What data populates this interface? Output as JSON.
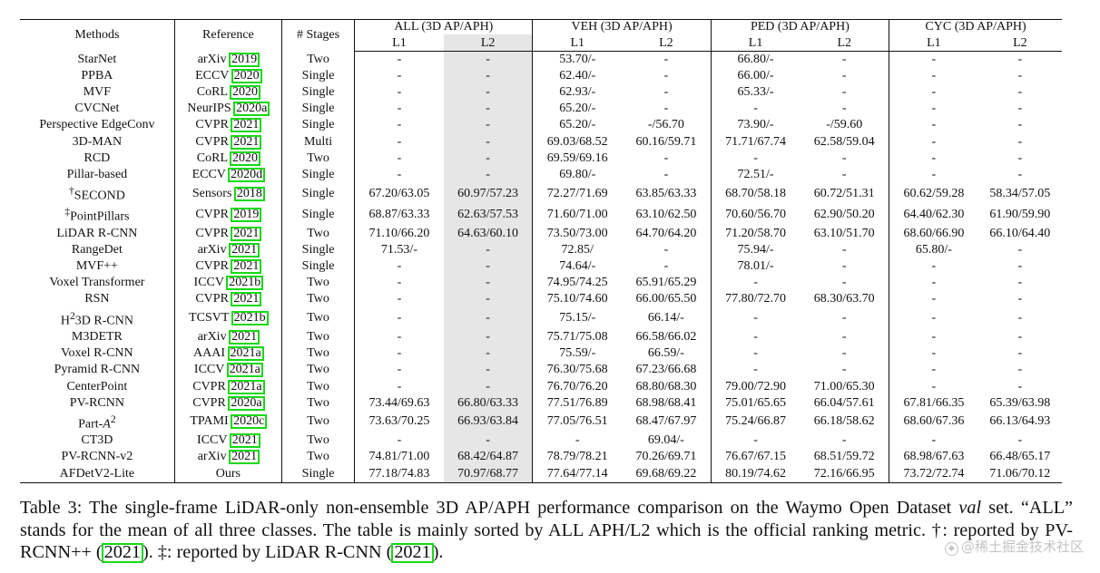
{
  "table": {
    "headers": {
      "methods": "Methods",
      "reference": "Reference",
      "stages": "# Stages",
      "groups": [
        "ALL (3D AP/APH)",
        "VEH (3D AP/APH)",
        "PED (3D AP/APH)",
        "CYC (3D AP/APH)"
      ],
      "l1": "L1",
      "l2": "L2"
    },
    "rows": [
      {
        "method": "StarNet",
        "venue": "arXiv",
        "year": "2019",
        "stages": "Two",
        "vals": [
          "-",
          "-",
          "53.70/-",
          "-",
          "66.80/-",
          "-",
          "-",
          "-"
        ]
      },
      {
        "method": "PPBA",
        "venue": "ECCV",
        "year": "2020",
        "stages": "Single",
        "vals": [
          "-",
          "-",
          "62.40/-",
          "-",
          "66.00/-",
          "-",
          "-",
          "-"
        ]
      },
      {
        "method": "MVF",
        "venue": "CoRL",
        "year": "2020",
        "stages": "Single",
        "vals": [
          "-",
          "-",
          "62.93/-",
          "-",
          "65.33/-",
          "-",
          "-",
          "-"
        ]
      },
      {
        "method": "CVCNet",
        "venue": "NeurIPS",
        "year": "2020a",
        "stages": "Single",
        "vals": [
          "-",
          "-",
          "65.20/-",
          "-",
          "-",
          "-",
          "-",
          "-"
        ]
      },
      {
        "method": "Perspective EdgeConv",
        "venue": "CVPR",
        "year": "2021",
        "stages": "Single",
        "vals": [
          "-",
          "-",
          "65.20/-",
          "-/56.70",
          "73.90/-",
          "-/59.60",
          "-",
          "-"
        ]
      },
      {
        "method": "3D-MAN",
        "venue": "CVPR",
        "year": "2021",
        "stages": "Multi",
        "vals": [
          "-",
          "-",
          "69.03/68.52",
          "60.16/59.71",
          "71.71/67.74",
          "62.58/59.04",
          "-",
          "-"
        ]
      },
      {
        "method": "RCD",
        "venue": "CoRL",
        "year": "2020",
        "stages": "Two",
        "vals": [
          "-",
          "-",
          "69.59/69.16",
          "-",
          "-",
          "-",
          "-",
          "-"
        ]
      },
      {
        "method": "Pillar-based",
        "venue": "ECCV",
        "year": "2020d",
        "stages": "Single",
        "vals": [
          "-",
          "-",
          "69.80/-",
          "-",
          "72.51/-",
          "-",
          "-",
          "-"
        ]
      },
      {
        "mark": "†",
        "method": "SECOND",
        "venue": "Sensors",
        "year": "2018",
        "stages": "Single",
        "vals": [
          "67.20/63.05",
          "60.97/57.23",
          "72.27/71.69",
          "63.85/63.33",
          "68.70/58.18",
          "60.72/51.31",
          "60.62/59.28",
          "58.34/57.05"
        ]
      },
      {
        "mark": "‡",
        "method": "PointPillars",
        "venue": "CVPR",
        "year": "2019",
        "stages": "Single",
        "vals": [
          "68.87/63.33",
          "62.63/57.53",
          "71.60/71.00",
          "63.10/62.50",
          "70.60/56.70",
          "62.90/50.20",
          "64.40/62.30",
          "61.90/59.90"
        ]
      },
      {
        "method": "LiDAR R-CNN",
        "venue": "CVPR",
        "year": "2021",
        "stages": "Two",
        "vals": [
          "71.10/66.20",
          "64.63/60.10",
          "73.50/73.00",
          "64.70/64.20",
          "71.20/58.70",
          "63.10/51.70",
          "68.60/66.90",
          "66.10/64.40"
        ]
      },
      {
        "method": "RangeDet",
        "venue": "arXiv",
        "year": "2021",
        "stages": "Single",
        "vals": [
          "71.53/-",
          "-",
          "72.85/",
          "-",
          "75.94/-",
          "-",
          "65.80/-",
          "-"
        ]
      },
      {
        "method": "MVF++",
        "venue": "CVPR",
        "year": "2021",
        "stages": "Single",
        "vals": [
          "-",
          "-",
          "74.64/-",
          "-",
          "78.01/-",
          "-",
          "-",
          "-"
        ]
      },
      {
        "method": "Voxel Transformer",
        "venue": "ICCV",
        "year": "2021b",
        "stages": "Two",
        "vals": [
          "-",
          "-",
          "74.95/74.25",
          "65.91/65.29",
          "-",
          "-",
          "-",
          "-"
        ]
      },
      {
        "method": "RSN",
        "venue": "CVPR",
        "year": "2021",
        "stages": "Two",
        "vals": [
          "-",
          "-",
          "75.10/74.60",
          "66.00/65.50",
          "77.80/72.70",
          "68.30/63.70",
          "-",
          "-"
        ]
      },
      {
        "method": "3D R-CNN",
        "pre": "H",
        "sup": "2",
        "venue": "TCSVT",
        "year": "2021b",
        "stages": "Two",
        "vals": [
          "-",
          "-",
          "75.15/-",
          "66.14/-",
          "-",
          "-",
          "-",
          "-"
        ]
      },
      {
        "method": "M3DETR",
        "venue": "arXiv",
        "year": "2021",
        "stages": "Two",
        "vals": [
          "-",
          "-",
          "75.71/75.08",
          "66.58/66.02",
          "-",
          "-",
          "-",
          "-"
        ]
      },
      {
        "method": "Voxel R-CNN",
        "venue": "AAAI",
        "year": "2021a",
        "stages": "Two",
        "vals": [
          "-",
          "-",
          "75.59/-",
          "66.59/-",
          "-",
          "-",
          "-",
          "-"
        ]
      },
      {
        "method": "Pyramid R-CNN",
        "venue": "ICCV",
        "year": "2021a",
        "stages": "Two",
        "vals": [
          "-",
          "-",
          "76.30/75.68",
          "67.23/66.68",
          "-",
          "-",
          "-",
          "-"
        ]
      },
      {
        "method": "CenterPoint",
        "venue": "CVPR",
        "year": "2021a",
        "stages": "Two",
        "vals": [
          "-",
          "-",
          "76.70/76.20",
          "68.80/68.30",
          "79.00/72.90",
          "71.00/65.30",
          "-",
          "-"
        ]
      },
      {
        "method": "PV-RCNN",
        "venue": "CVPR",
        "year": "2020a",
        "stages": "Two",
        "vals": [
          "73.44/69.63",
          "66.80/63.33",
          "77.51/76.89",
          "68.98/68.41",
          "75.01/65.65",
          "66.04/57.61",
          "67.81/66.35",
          "65.39/63.98"
        ]
      },
      {
        "method": "Part-",
        "italic": "A",
        "sup": "2",
        "venue": "TPAMI",
        "year": "2020c",
        "stages": "Two",
        "vals": [
          "73.63/70.25",
          "66.93/63.84",
          "77.05/76.51",
          "68.47/67.97",
          "75.24/66.87",
          "66.18/58.62",
          "68.60/67.36",
          "66.13/64.93"
        ]
      },
      {
        "method": "CT3D",
        "venue": "ICCV",
        "year": "2021",
        "stages": "Two",
        "vals": [
          "-",
          "-",
          "-",
          "69.04/-",
          "-",
          "-",
          "-",
          "-"
        ]
      },
      {
        "method": "PV-RCNN-v2",
        "venue": "arXiv",
        "year": "2021",
        "stages": "Two",
        "vals": [
          "74.81/71.00",
          "68.42/64.87",
          "78.79/78.21",
          "70.26/69.71",
          "76.67/67.15",
          "68.51/59.72",
          "68.98/67.63",
          "66.48/65.17"
        ],
        "bold": [
          2,
          3
        ]
      },
      {
        "method": "AFDetV2-Lite",
        "ref_text": "Ours",
        "stages": "Single",
        "vals": [
          "77.18/74.83",
          "70.97/68.77",
          "77.64/77.14",
          "69.68/69.22",
          "80.19/74.62",
          "72.16/66.95",
          "73.72/72.74",
          "71.06/70.12"
        ],
        "bold": [
          0,
          1,
          4,
          5,
          6,
          7
        ]
      }
    ]
  },
  "caption": {
    "label": "Table 3: The single-frame LiDAR-only non-ensemble 3D AP/APH performance comparison on the Waymo Open Dataset ",
    "val_italic": "val",
    "text2": " set. “ALL” stands for the mean of all three classes. The table is mainly sorted by ALL APH/L2 which is the official ranking metric. †: reported by PV-RCNN++ (",
    "ref1": "2021",
    "text3": "). ‡: reported by LiDAR R-CNN (",
    "ref2": "2021",
    "text4": ")."
  },
  "watermark": {
    "icon": "juejin-logo-icon",
    "text": "@稀土掘金技术社区"
  },
  "colors": {
    "citation_box": "#17d817",
    "shaded_column": "#e6e6e6"
  }
}
